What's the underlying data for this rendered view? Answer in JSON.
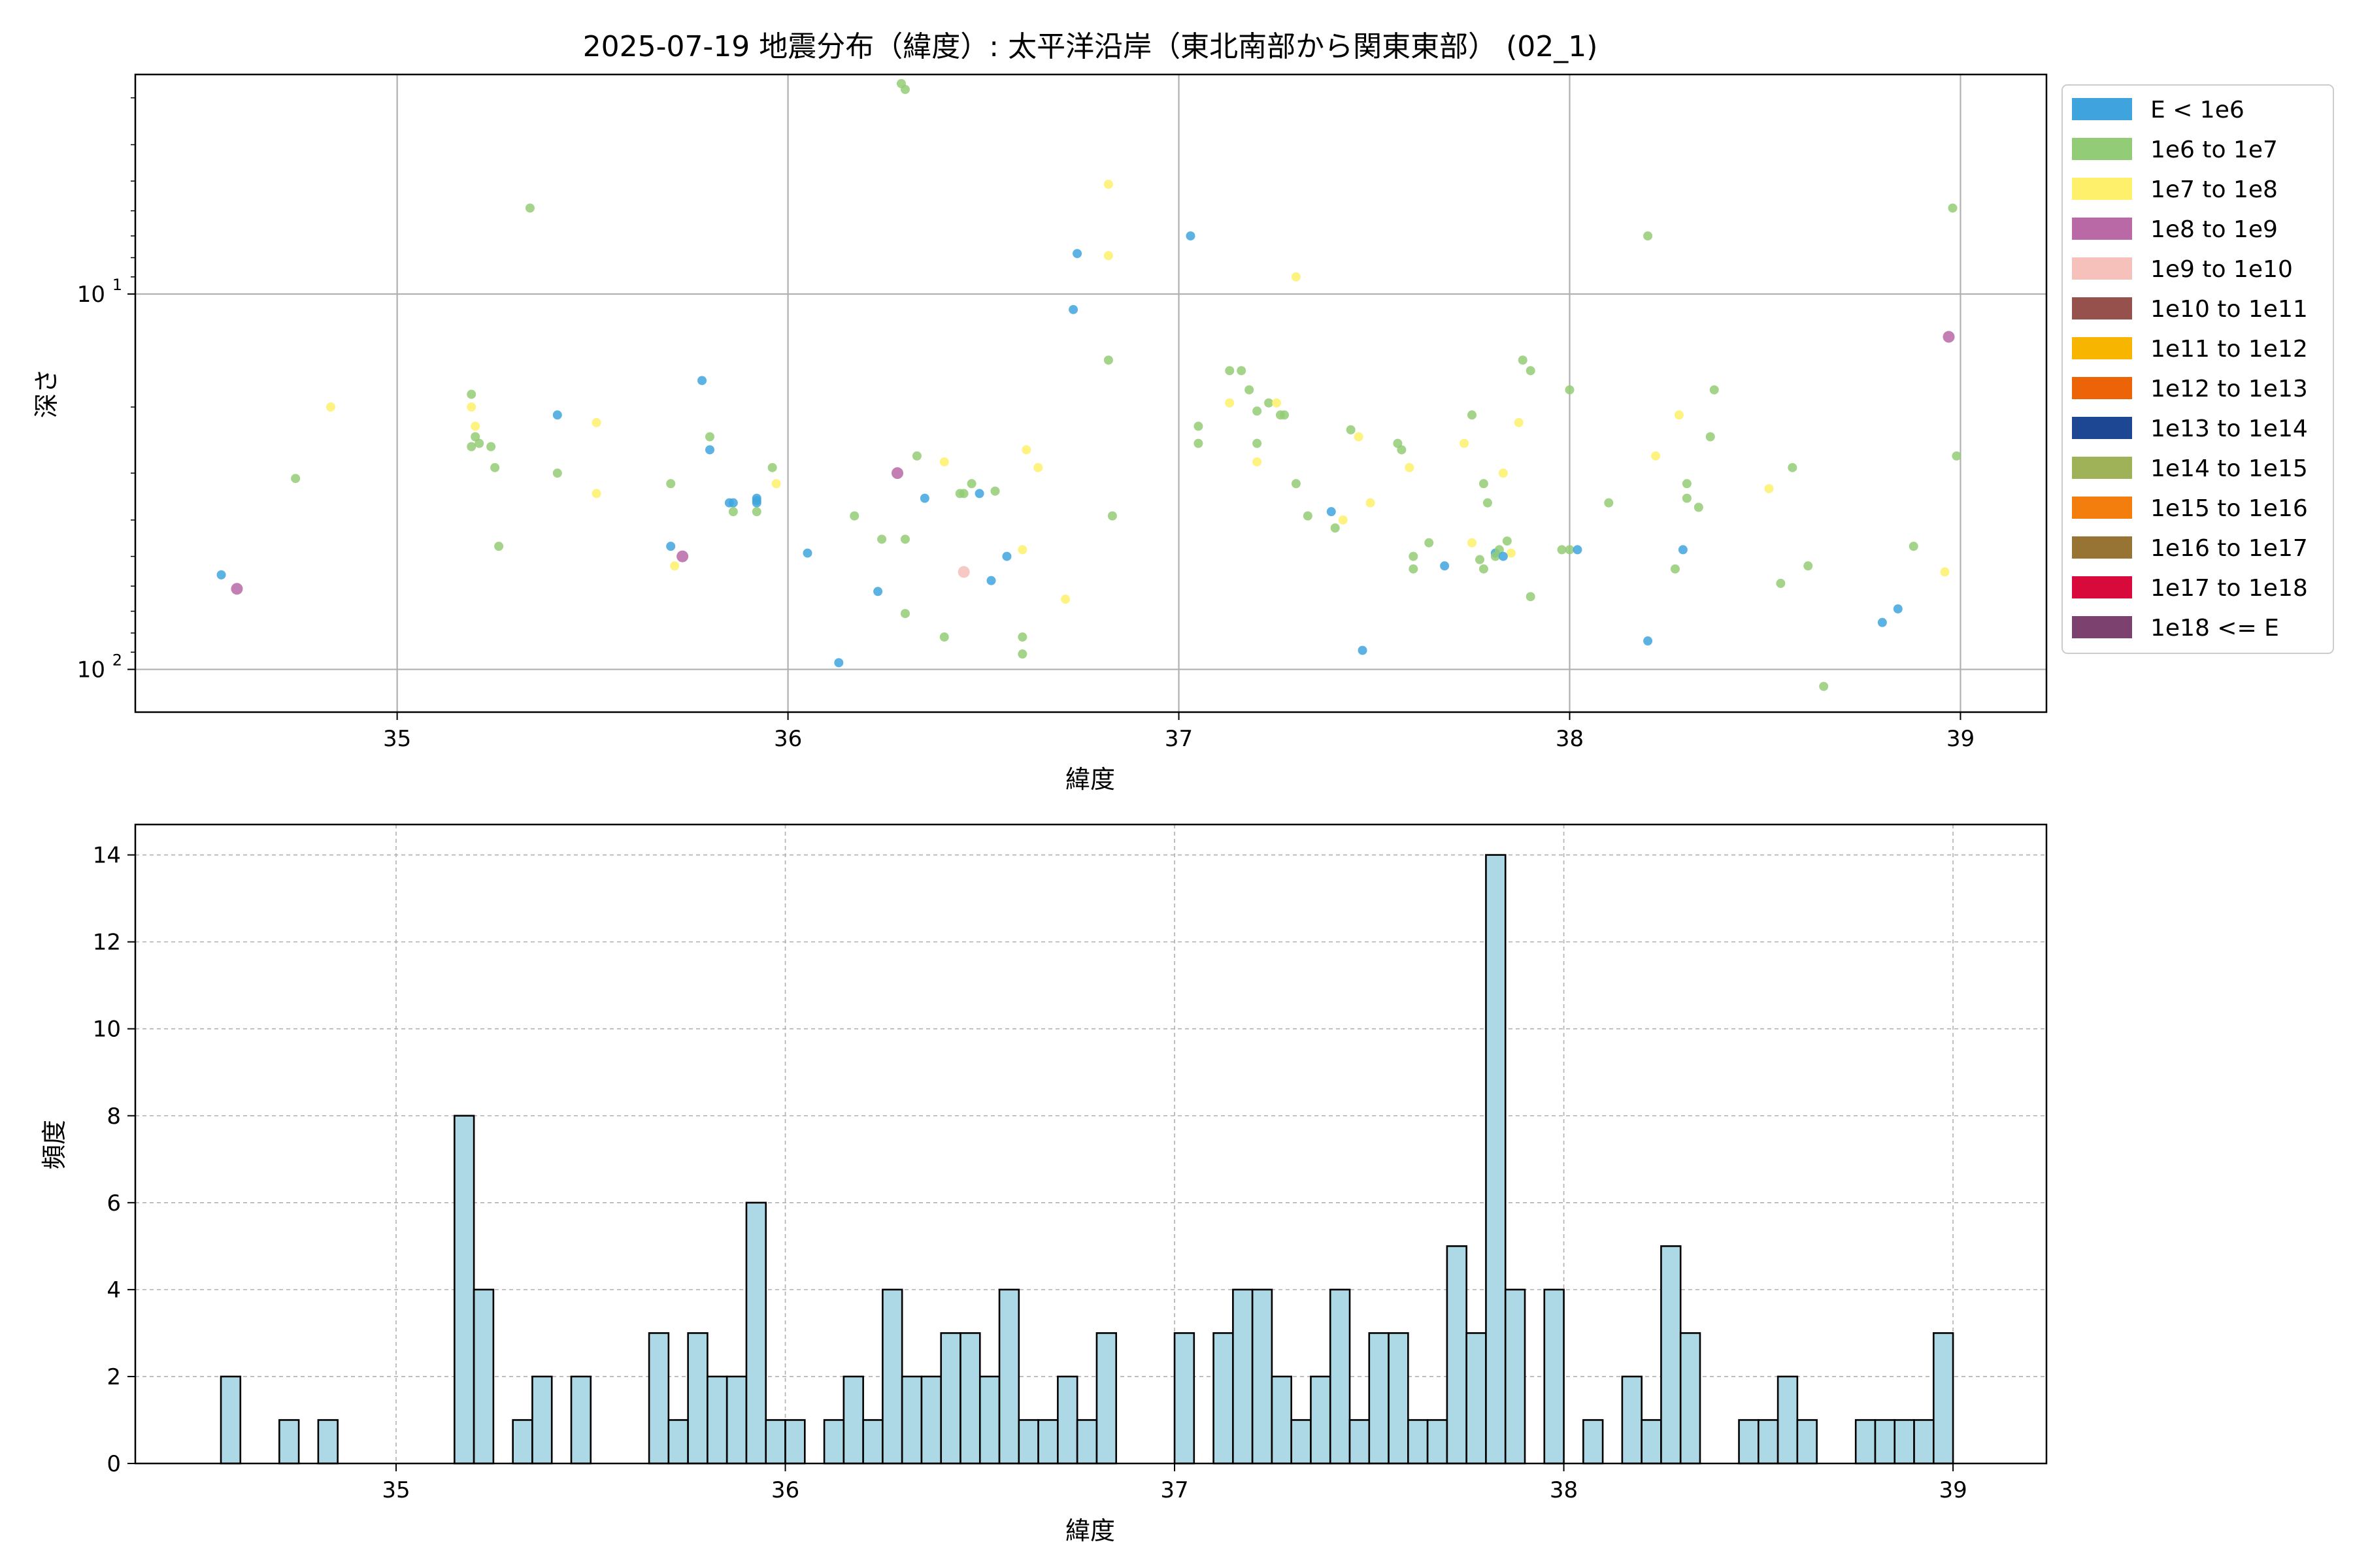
{
  "scatter": {
    "type": "scatter",
    "title": "2025-07-19 地震分布（緯度）: 太平洋沿岸（東北南部から関東東部） (02_1)",
    "xlabel": "緯度",
    "ylabel": "深さ",
    "xlim": [
      34.33,
      39.22
    ],
    "ylim": [
      130,
      2.6
    ],
    "yscale": "log",
    "yaxis_inverted": true,
    "grid": true,
    "xticks": [
      35,
      36,
      37,
      38,
      39
    ],
    "yticks": [
      {
        "value": 10,
        "label": "10^1"
      },
      {
        "value": 100,
        "label": "10^2"
      }
    ],
    "legend": {
      "placement": "outside-right",
      "entries": [
        {
          "label": "E < 1e6",
          "color": "#3fa4dd"
        },
        {
          "label": "1e6 to 1e7",
          "color": "#93cc76"
        },
        {
          "label": "1e7 to 1e8",
          "color": "#fef06b"
        },
        {
          "label": "1e8 to 1e9",
          "color": "#b969a6"
        },
        {
          "label": "1e9 to 1e10",
          "color": "#f6c0bb"
        },
        {
          "label": "1e10 to 1e11",
          "color": "#96514c"
        },
        {
          "label": "1e11 to 1e12",
          "color": "#f8b500"
        },
        {
          "label": "1e12 to 1e13",
          "color": "#ec6407"
        },
        {
          "label": "1e13 to 1e14",
          "color": "#1d4793"
        },
        {
          "label": "1e14 to 1e15",
          "color": "#9fb257"
        },
        {
          "label": "1e15 to 1e16",
          "color": "#f47e0d"
        },
        {
          "label": "1e16 to 1e17",
          "color": "#987434"
        },
        {
          "label": "1e17 to 1e18",
          "color": "#d80a3c"
        },
        {
          "label": "1e18 <= E",
          "color": "#7c416f"
        }
      ]
    },
    "points": [
      [
        34.55,
        56,
        0
      ],
      [
        34.59,
        61,
        3
      ],
      [
        34.74,
        31,
        1
      ],
      [
        34.83,
        20,
        2
      ],
      [
        35.19,
        18.5,
        1
      ],
      [
        35.19,
        20,
        2
      ],
      [
        35.2,
        22.5,
        2
      ],
      [
        35.2,
        24,
        1
      ],
      [
        35.19,
        25.5,
        1
      ],
      [
        35.21,
        25,
        1
      ],
      [
        35.24,
        25.5,
        1
      ],
      [
        35.25,
        29,
        1
      ],
      [
        35.26,
        47,
        1
      ],
      [
        35.34,
        5.9,
        1
      ],
      [
        35.41,
        21,
        0
      ],
      [
        35.41,
        30,
        1
      ],
      [
        35.51,
        22,
        2
      ],
      [
        35.51,
        34,
        2
      ],
      [
        35.7,
        47,
        0
      ],
      [
        35.7,
        32,
        1
      ],
      [
        35.71,
        53,
        2
      ],
      [
        35.73,
        50,
        3
      ],
      [
        35.78,
        17,
        0
      ],
      [
        35.8,
        26,
        0
      ],
      [
        35.8,
        24,
        1
      ],
      [
        35.85,
        36,
        0
      ],
      [
        35.86,
        36,
        0
      ],
      [
        35.86,
        38,
        1
      ],
      [
        35.92,
        35,
        0
      ],
      [
        35.92,
        36,
        0
      ],
      [
        35.92,
        35.5,
        0
      ],
      [
        35.92,
        38,
        1
      ],
      [
        35.96,
        29,
        1
      ],
      [
        35.97,
        32,
        2
      ],
      [
        36.05,
        49,
        0
      ],
      [
        36.13,
        96,
        0
      ],
      [
        36.17,
        39,
        1
      ],
      [
        36.23,
        62,
        0
      ],
      [
        36.24,
        45,
        1
      ],
      [
        36.28,
        30,
        3
      ],
      [
        36.3,
        45,
        1
      ],
      [
        36.3,
        71,
        1
      ],
      [
        36.33,
        27,
        1
      ],
      [
        36.35,
        35,
        0
      ],
      [
        36.4,
        28,
        2
      ],
      [
        36.4,
        82,
        1
      ],
      [
        36.44,
        34,
        1
      ],
      [
        36.45,
        34,
        1
      ],
      [
        36.45,
        55,
        4
      ],
      [
        36.47,
        32,
        1
      ],
      [
        36.49,
        34,
        0
      ],
      [
        36.52,
        58,
        0
      ],
      [
        36.53,
        33.5,
        1
      ],
      [
        36.56,
        50,
        0
      ],
      [
        36.6,
        48,
        2
      ],
      [
        36.6,
        82,
        1
      ],
      [
        36.6,
        91,
        1
      ],
      [
        36.61,
        26,
        2
      ],
      [
        36.64,
        29,
        2
      ],
      [
        36.71,
        65,
        2
      ],
      [
        36.29,
        2.75,
        1
      ],
      [
        36.73,
        11,
        0
      ],
      [
        36.74,
        7.8,
        0
      ],
      [
        36.82,
        7.9,
        2
      ],
      [
        36.82,
        5.1,
        2
      ],
      [
        36.82,
        15,
        1
      ],
      [
        36.83,
        39,
        1
      ],
      [
        37.03,
        7,
        0
      ],
      [
        37.05,
        22.5,
        1
      ],
      [
        37.05,
        25,
        1
      ],
      [
        37.13,
        16,
        1
      ],
      [
        37.13,
        19.5,
        2
      ],
      [
        37.16,
        16,
        1
      ],
      [
        37.18,
        18,
        1
      ],
      [
        37.2,
        20.5,
        1
      ],
      [
        37.2,
        28,
        2
      ],
      [
        37.2,
        25,
        1
      ],
      [
        37.23,
        19.5,
        1
      ],
      [
        37.25,
        19.5,
        2
      ],
      [
        37.26,
        21,
        1
      ],
      [
        37.27,
        21,
        1
      ],
      [
        37.3,
        9,
        2
      ],
      [
        37.3,
        32,
        1
      ],
      [
        37.33,
        39,
        1
      ],
      [
        37.39,
        38,
        0
      ],
      [
        37.4,
        42,
        1
      ],
      [
        37.42,
        40,
        2
      ],
      [
        37.44,
        23,
        1
      ],
      [
        37.46,
        24,
        2
      ],
      [
        37.47,
        89,
        0
      ],
      [
        37.49,
        36,
        2
      ],
      [
        37.56,
        25,
        1
      ],
      [
        37.57,
        26,
        1
      ],
      [
        37.59,
        29,
        2
      ],
      [
        37.6,
        54,
        1
      ],
      [
        37.6,
        50,
        1
      ],
      [
        37.64,
        46,
        1
      ],
      [
        37.68,
        53,
        0
      ],
      [
        37.73,
        25,
        2
      ],
      [
        37.75,
        46,
        2
      ],
      [
        37.75,
        21,
        1
      ],
      [
        37.77,
        51,
        1
      ],
      [
        37.78,
        54,
        1
      ],
      [
        37.78,
        32,
        1
      ],
      [
        37.79,
        36,
        1
      ],
      [
        37.81,
        49,
        0
      ],
      [
        37.81,
        50,
        1
      ],
      [
        37.82,
        48,
        1
      ],
      [
        37.83,
        30,
        2
      ],
      [
        37.84,
        45.5,
        1
      ],
      [
        37.85,
        49,
        2
      ],
      [
        37.83,
        50,
        0
      ],
      [
        37.87,
        22,
        2
      ],
      [
        37.88,
        15,
        1
      ],
      [
        37.9,
        16,
        1
      ],
      [
        37.9,
        64,
        1
      ],
      [
        37.98,
        48,
        1
      ],
      [
        38.0,
        48,
        1
      ],
      [
        38.0,
        18,
        1
      ],
      [
        38.02,
        48,
        0
      ],
      [
        38.1,
        36,
        1
      ],
      [
        38.2,
        7,
        1
      ],
      [
        38.2,
        84,
        0
      ],
      [
        38.22,
        27,
        2
      ],
      [
        38.27,
        54,
        1
      ],
      [
        38.28,
        21,
        2
      ],
      [
        38.29,
        48,
        0
      ],
      [
        38.3,
        32,
        1
      ],
      [
        38.3,
        35,
        1
      ],
      [
        38.33,
        37,
        1
      ],
      [
        38.36,
        24,
        1
      ],
      [
        38.37,
        18,
        1
      ],
      [
        38.51,
        33,
        2
      ],
      [
        38.54,
        59,
        1
      ],
      [
        38.57,
        29,
        1
      ],
      [
        38.61,
        53,
        1
      ],
      [
        38.65,
        111,
        1
      ],
      [
        38.8,
        75,
        0
      ],
      [
        38.84,
        69,
        0
      ],
      [
        38.88,
        47,
        1
      ],
      [
        38.96,
        55,
        2
      ],
      [
        38.97,
        13,
        3
      ],
      [
        38.98,
        5.9,
        1
      ],
      [
        38.99,
        27,
        1
      ],
      [
        36.3,
        2.85,
        1
      ]
    ]
  },
  "histogram": {
    "type": "bar",
    "xlabel": "緯度",
    "ylabel": "頻度",
    "xlim": [
      34.33,
      39.24
    ],
    "ylim": [
      0,
      14.7
    ],
    "bar_color": "#add8e6",
    "edge_color": "#000000",
    "bin_width": 0.05,
    "grid": "dashed",
    "xticks": [
      35,
      36,
      37,
      38,
      39
    ],
    "yticks": [
      0,
      2,
      4,
      6,
      8,
      10,
      12,
      14
    ],
    "bins": [
      [
        34.55,
        2
      ],
      [
        34.7,
        1
      ],
      [
        34.8,
        1
      ],
      [
        35.15,
        8
      ],
      [
        35.2,
        4
      ],
      [
        35.3,
        1
      ],
      [
        35.35,
        2
      ],
      [
        35.45,
        2
      ],
      [
        35.65,
        3
      ],
      [
        35.7,
        1
      ],
      [
        35.75,
        3
      ],
      [
        35.8,
        2
      ],
      [
        35.85,
        2
      ],
      [
        35.9,
        6
      ],
      [
        35.95,
        1
      ],
      [
        36.0,
        1
      ],
      [
        36.1,
        1
      ],
      [
        36.15,
        2
      ],
      [
        36.2,
        1
      ],
      [
        36.25,
        4
      ],
      [
        36.3,
        2
      ],
      [
        36.35,
        2
      ],
      [
        36.4,
        3
      ],
      [
        36.45,
        3
      ],
      [
        36.5,
        2
      ],
      [
        36.55,
        4
      ],
      [
        36.6,
        1
      ],
      [
        36.65,
        1
      ],
      [
        36.7,
        2
      ],
      [
        36.75,
        1
      ],
      [
        36.8,
        3
      ],
      [
        37.0,
        3
      ],
      [
        37.1,
        3
      ],
      [
        37.15,
        4
      ],
      [
        37.2,
        4
      ],
      [
        37.25,
        2
      ],
      [
        37.3,
        1
      ],
      [
        37.35,
        2
      ],
      [
        37.4,
        4
      ],
      [
        37.45,
        1
      ],
      [
        37.5,
        3
      ],
      [
        37.55,
        3
      ],
      [
        37.6,
        1
      ],
      [
        37.65,
        1
      ],
      [
        37.7,
        5
      ],
      [
        37.75,
        3
      ],
      [
        37.8,
        14
      ],
      [
        37.85,
        4
      ],
      [
        37.95,
        4
      ],
      [
        38.05,
        1
      ],
      [
        38.15,
        2
      ],
      [
        38.2,
        1
      ],
      [
        38.25,
        5
      ],
      [
        38.3,
        3
      ],
      [
        38.45,
        1
      ],
      [
        38.5,
        1
      ],
      [
        38.55,
        2
      ],
      [
        38.6,
        1
      ],
      [
        38.75,
        1
      ],
      [
        38.8,
        1
      ],
      [
        38.85,
        1
      ],
      [
        38.9,
        1
      ],
      [
        38.95,
        3
      ]
    ]
  }
}
